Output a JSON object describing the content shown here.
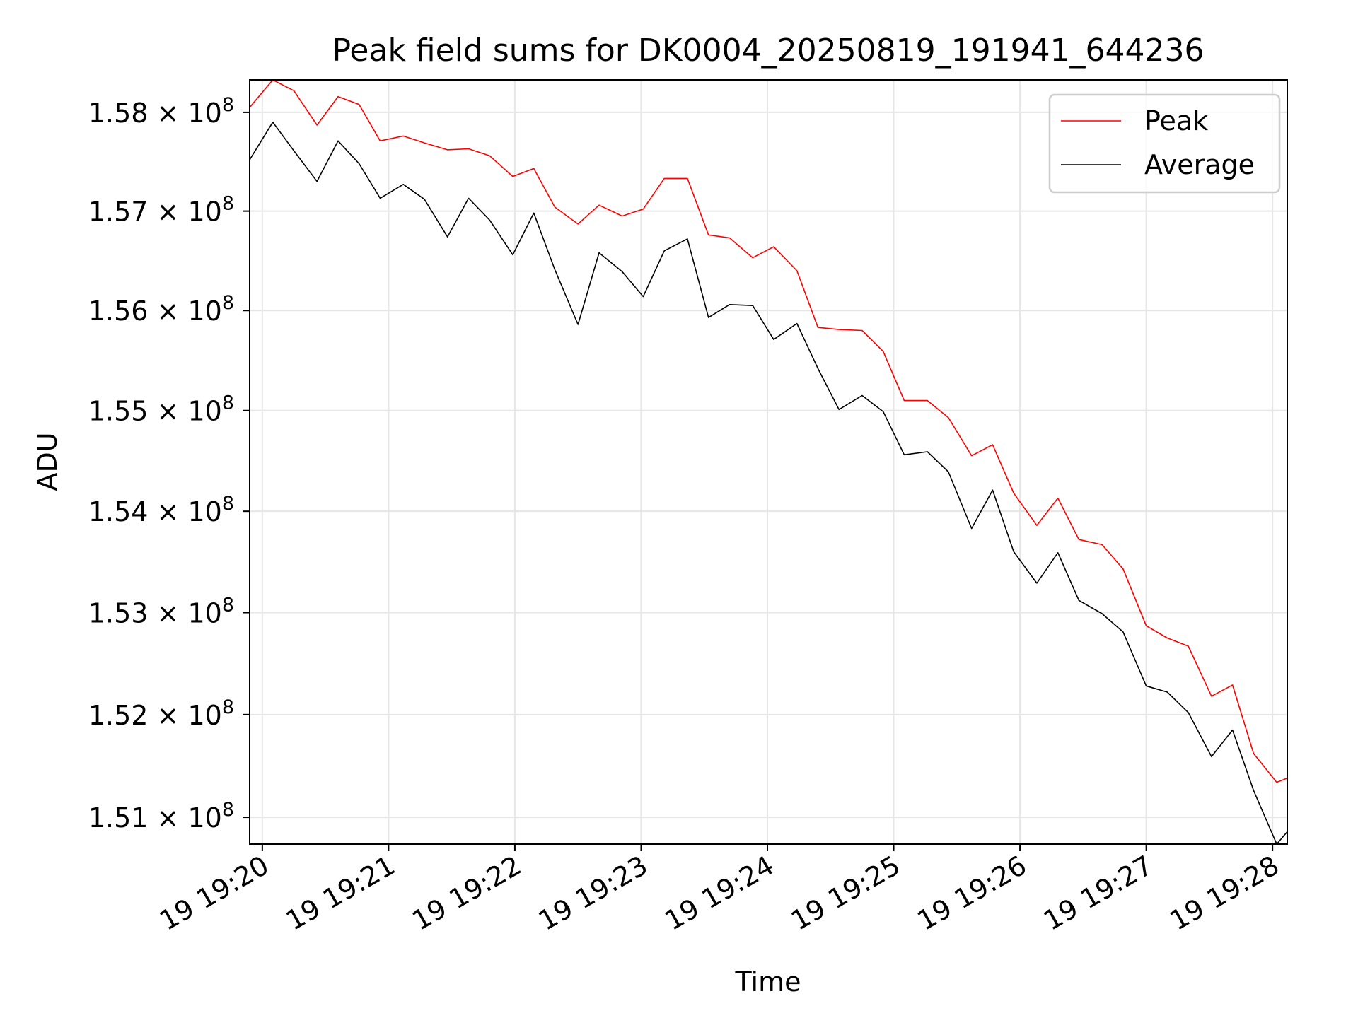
{
  "chart_data": {
    "type": "line",
    "title": "Peak field sums for DK0004_20250819_191941_644236",
    "xlabel": "Time",
    "ylabel": "ADU",
    "grid": true,
    "legend_position": "top-right",
    "x_axis": {
      "kind": "time",
      "range": [
        "19:19:54",
        "19:28:07"
      ],
      "tick_labels": [
        "19 19:20",
        "19 19:21",
        "19 19:22",
        "19 19:23",
        "19 19:24",
        "19 19:25",
        "19 19:26",
        "19 19:27",
        "19 19:28"
      ]
    },
    "y_axis": {
      "scale": "log",
      "range": [
        150740000,
        158330000
      ],
      "tick_values": [
        151000000,
        152000000,
        153000000,
        154000000,
        155000000,
        156000000,
        157000000,
        158000000
      ],
      "tick_labels": [
        "1.51",
        "1.52",
        "1.53",
        "1.54",
        "1.55",
        "1.56",
        "1.57",
        "1.58"
      ],
      "tick_exponent_base": "10",
      "tick_exponent": "8"
    },
    "x": [
      "19:19:54",
      "19:20:05",
      "19:20:15",
      "19:20:26",
      "19:20:36",
      "19:20:46",
      "19:20:56",
      "19:21:07",
      "19:21:17",
      "19:21:28",
      "19:21:38",
      "19:21:48",
      "19:21:59",
      "19:22:09",
      "19:22:19",
      "19:22:30",
      "19:22:40",
      "19:22:51",
      "19:23:01",
      "19:23:11",
      "19:23:22",
      "19:23:32",
      "19:23:42",
      "19:23:53",
      "19:24:03",
      "19:24:14",
      "19:24:24",
      "19:24:34",
      "19:24:45",
      "19:24:55",
      "19:25:05",
      "19:25:16",
      "19:25:26",
      "19:25:37",
      "19:25:47",
      "19:25:57",
      "19:26:08",
      "19:26:18",
      "19:26:28",
      "19:26:39",
      "19:26:49",
      "19:27:00",
      "19:27:10",
      "19:27:20",
      "19:27:31",
      "19:27:41",
      "19:27:51",
      "19:28:02",
      "19:28:07"
    ],
    "series": [
      {
        "name": "Peak",
        "color": "#ff0000",
        "values": [
          158050000,
          158330000,
          158220000,
          157870000,
          158160000,
          158080000,
          157710000,
          157760000,
          157690000,
          157620000,
          157630000,
          157560000,
          157350000,
          157430000,
          157040000,
          156870000,
          157060000,
          156950000,
          157020000,
          157330000,
          157330000,
          156760000,
          156730000,
          156530000,
          156640000,
          156400000,
          155830000,
          155810000,
          155800000,
          155590000,
          155100000,
          155100000,
          154930000,
          154550000,
          154660000,
          154180000,
          153860000,
          154130000,
          153720000,
          153670000,
          153430000,
          152870000,
          152750000,
          152670000,
          152180000,
          152290000,
          151620000,
          151340000,
          151380000
        ]
      },
      {
        "name": "Average",
        "color": "#000000",
        "values": [
          157520000,
          157900000,
          157610000,
          157300000,
          157710000,
          157480000,
          157130000,
          157270000,
          157120000,
          156740000,
          157130000,
          156910000,
          156560000,
          156980000,
          156410000,
          155860000,
          156580000,
          156390000,
          156140000,
          156600000,
          156720000,
          155930000,
          156060000,
          156050000,
          155710000,
          155870000,
          155420000,
          155010000,
          155150000,
          154990000,
          154560000,
          154590000,
          154390000,
          153830000,
          154210000,
          153600000,
          153290000,
          153590000,
          153120000,
          152990000,
          152810000,
          152280000,
          152220000,
          152020000,
          151590000,
          151850000,
          151260000,
          150740000,
          150860000
        ]
      }
    ]
  }
}
